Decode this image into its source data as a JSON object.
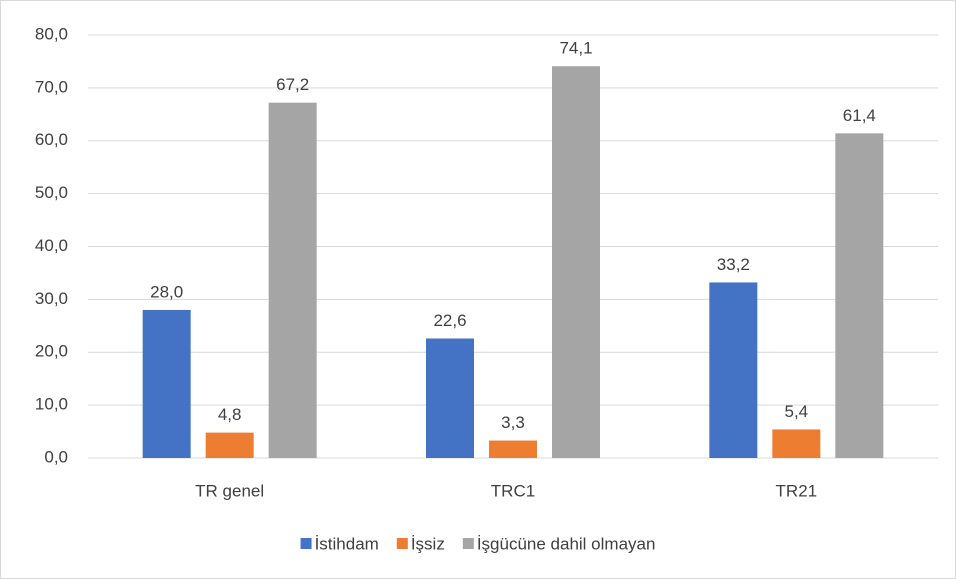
{
  "chart_data": {
    "type": "bar",
    "categories": [
      "TR genel",
      "TRC1",
      "TR21"
    ],
    "series": [
      {
        "name": "İstihdam",
        "color": "#4472c4",
        "values": [
          28.0,
          22.6,
          33.2
        ],
        "value_labels": [
          "28,0",
          "22,6",
          "33,2"
        ]
      },
      {
        "name": "İşsiz",
        "color": "#ed7d31",
        "values": [
          4.8,
          3.3,
          5.4
        ],
        "value_labels": [
          "4,8",
          "3,3",
          "5,4"
        ]
      },
      {
        "name": "İşgücüne dahil olmayan",
        "color": "#a5a5a5",
        "values": [
          67.2,
          74.1,
          61.4
        ],
        "value_labels": [
          "67,2",
          "74,1",
          "61,4"
        ]
      }
    ],
    "ylim": [
      0,
      80
    ],
    "yticks": [
      {
        "value": 0,
        "label": "0,0"
      },
      {
        "value": 10,
        "label": "10,0"
      },
      {
        "value": 20,
        "label": "20,0"
      },
      {
        "value": 30,
        "label": "30,0"
      },
      {
        "value": 40,
        "label": "40,0"
      },
      {
        "value": 50,
        "label": "50,0"
      },
      {
        "value": 60,
        "label": "60,0"
      },
      {
        "value": 70,
        "label": "70,0"
      },
      {
        "value": 80,
        "label": "80,0"
      }
    ],
    "grid": true,
    "legend": "bottom"
  }
}
